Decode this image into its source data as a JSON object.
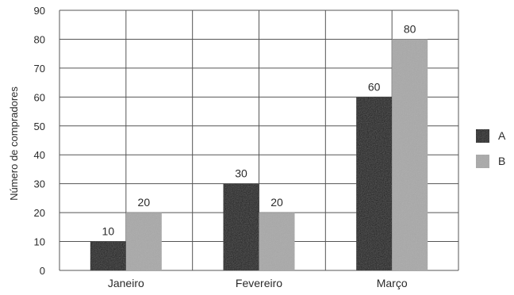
{
  "chart_data": {
    "type": "bar",
    "categories": [
      "Janeiro",
      "Fevereiro",
      "Março"
    ],
    "series": [
      {
        "name": "A",
        "values": [
          10,
          30,
          60
        ],
        "color": "#1e1e1e"
      },
      {
        "name": "B",
        "values": [
          20,
          20,
          80
        ],
        "color": "#a9a9a9"
      }
    ],
    "title": "",
    "xlabel": "",
    "ylabel": "Número de compradores",
    "ylim": [
      0,
      90
    ],
    "yticks": [
      0,
      10,
      20,
      30,
      40,
      50,
      60,
      70,
      80,
      90
    ],
    "grid": true,
    "legend_position": "right",
    "data_labels": true
  }
}
